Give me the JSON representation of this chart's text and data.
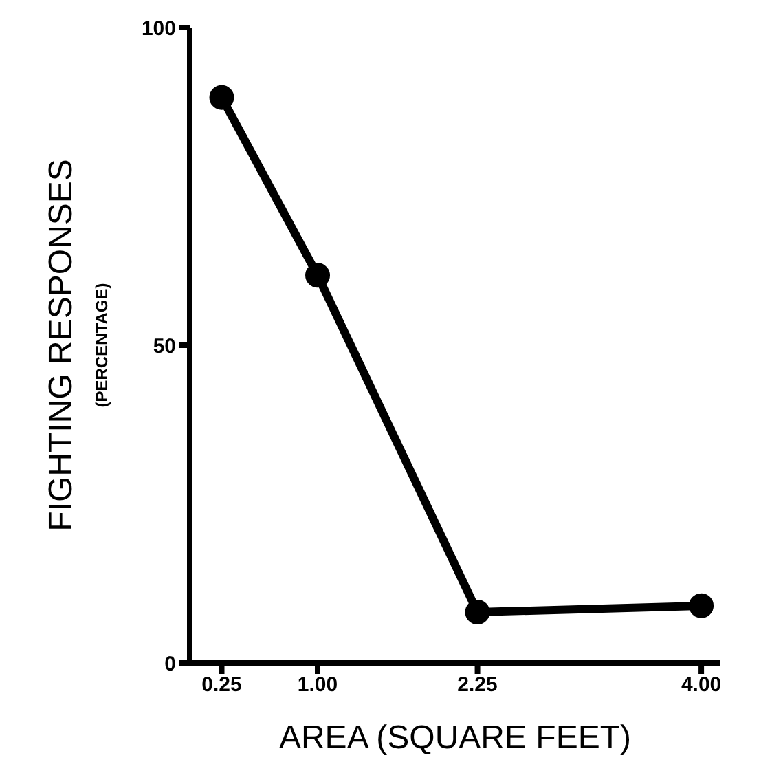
{
  "chart_data": {
    "type": "line",
    "xlabel": "AREA (SQUARE FEET)",
    "ylabel": "FIGHTING RESPONSES (PERCENTAGE)",
    "x": [
      0.25,
      1.0,
      2.25,
      4.0
    ],
    "series": [
      {
        "color": "#000000",
        "values": [
          89,
          61,
          8,
          9
        ]
      }
    ],
    "xlim": [
      0,
      4.15
    ],
    "xticks": [
      {
        "value": 0.25,
        "label": "0.25"
      },
      {
        "value": 1,
        "label": "1.00"
      },
      {
        "value": 2.25,
        "label": "2.25"
      },
      {
        "value": 4,
        "label": "4.00"
      }
    ],
    "ylim": [
      0,
      100
    ],
    "yticks": [
      0,
      50,
      100
    ],
    "grid": false,
    "legend": false,
    "marker": "circle",
    "line_style": "solid"
  }
}
